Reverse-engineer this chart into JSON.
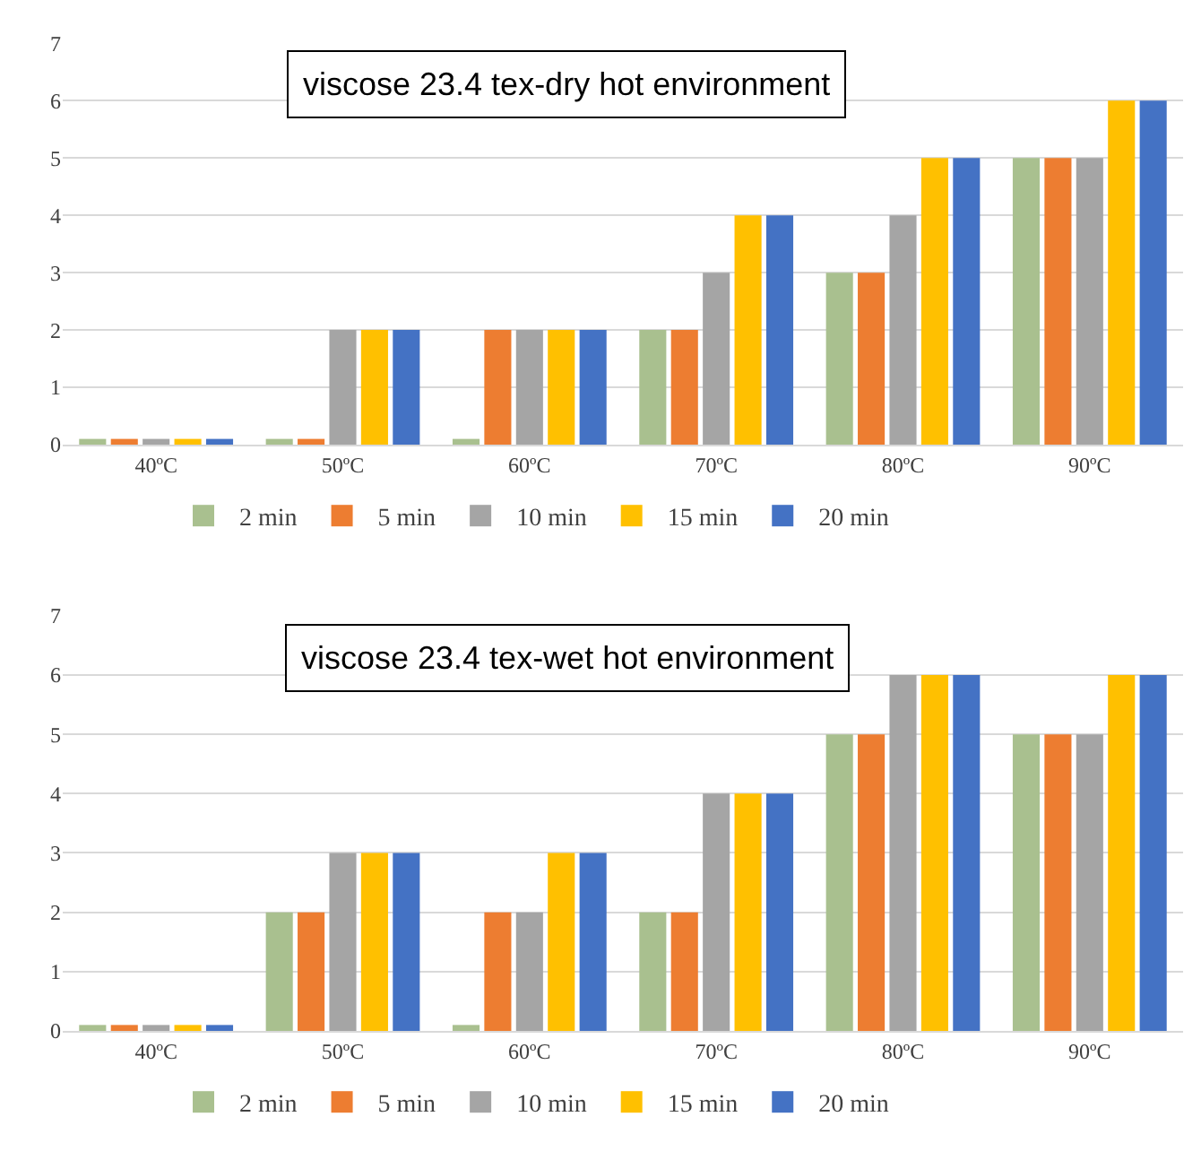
{
  "chart_data": [
    {
      "type": "bar",
      "title": "viscose 23.4 tex-dry hot environment",
      "categories": [
        "40ºC",
        "50ºC",
        "60ºC",
        "70ºC",
        "80ºC",
        "90ºC"
      ],
      "series": [
        {
          "name": "2 min",
          "color": "#a9c08f",
          "values": [
            0.1,
            0.1,
            0.1,
            2,
            3,
            5
          ]
        },
        {
          "name": "5 min",
          "color": "#ed7d31",
          "values": [
            0.1,
            0.1,
            2,
            2,
            3,
            5
          ]
        },
        {
          "name": "10 min",
          "color": "#a5a5a5",
          "values": [
            0.1,
            2,
            2,
            3,
            4,
            5
          ]
        },
        {
          "name": "15 min",
          "color": "#ffc000",
          "values": [
            0.1,
            2,
            2,
            4,
            5,
            6
          ]
        },
        {
          "name": "20 min",
          "color": "#4472c4",
          "values": [
            0.1,
            2,
            2,
            4,
            5,
            6
          ]
        }
      ],
      "ylim": [
        0,
        7
      ],
      "yticks": [
        0,
        1,
        2,
        3,
        4,
        5,
        6,
        7
      ],
      "grid": "y",
      "legend": "bottom"
    },
    {
      "type": "bar",
      "title": "viscose 23.4 tex-wet hot environment",
      "categories": [
        "40ºC",
        "50ºC",
        "60ºC",
        "70ºC",
        "80ºC",
        "90ºC"
      ],
      "series": [
        {
          "name": "2 min",
          "color": "#a9c08f",
          "values": [
            0.1,
            2,
            0.1,
            2,
            5,
            5
          ]
        },
        {
          "name": "5 min",
          "color": "#ed7d31",
          "values": [
            0.1,
            2,
            2,
            2,
            5,
            5
          ]
        },
        {
          "name": "10 min",
          "color": "#a5a5a5",
          "values": [
            0.1,
            3,
            2,
            4,
            6,
            5
          ]
        },
        {
          "name": "15 min",
          "color": "#ffc000",
          "values": [
            0.1,
            3,
            3,
            4,
            6,
            6
          ]
        },
        {
          "name": "20 min",
          "color": "#4472c4",
          "values": [
            0.1,
            3,
            3,
            4,
            6,
            6
          ]
        }
      ],
      "ylim": [
        0,
        7
      ],
      "yticks": [
        0,
        1,
        2,
        3,
        4,
        5,
        6,
        7
      ],
      "grid": "y",
      "legend": "bottom"
    }
  ]
}
